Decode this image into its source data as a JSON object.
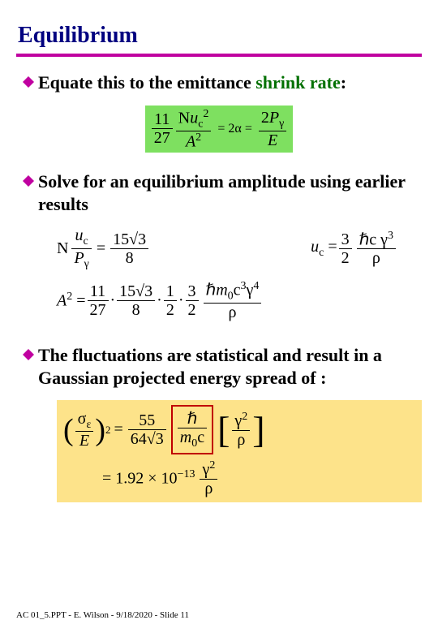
{
  "title": {
    "text": "Equilibrium",
    "color": "#000080",
    "fontsize": 28
  },
  "rule_color": "#c000a0",
  "bullet_color": "#c000a0",
  "highlight_green": "#7ee060",
  "highlight_yellow": "#fde38a",
  "shrink_color": "#007000",
  "bullets": {
    "b1_pre": "Equate this to the emittance ",
    "b1_shrink": "shrink rate",
    "b1_post": ":",
    "b2": "Solve for an equilibrium amplitude using earlier results",
    "b3": "The fluctuations are statistical and result in a Gaussian projected energy spread of :"
  },
  "eq1": {
    "f1_num": "11",
    "f1_den": "27",
    "f2_num_html": "N<i>u</i><sub>c</sub><sup>2</sup>",
    "f2_den_html": "<i>A</i><sup>2</sup>",
    "mid": "= 2α =",
    "f3_num_html": "2<i>P</i><sub>γ</sub>",
    "f3_den_html": "<i>E</i>"
  },
  "eq2a": {
    "left_html": "N ",
    "fL_num_html": "<i>u</i><sub>c</sub>",
    "fL_den_html": "<i>P</i><sub>γ</sub>",
    "eq": " = ",
    "fR_num_html": "15√3",
    "fR_den_html": "8"
  },
  "eq2b": {
    "left_html": "<i>u</i><sub>c</sub> = ",
    "f1_num": "3",
    "f1_den": "2",
    "f2_num_html": "ℏc γ<sup>3</sup>",
    "f2_den_html": "ρ"
  },
  "eq3": {
    "left_html": "<i>A</i><sup>2</sup> = ",
    "t1_num": "11",
    "t1_den": "27",
    "dot": " · ",
    "t2_num_html": "15√3",
    "t2_den": "8",
    "t3_num": "1",
    "t3_den": "2",
    "t4_num": "3",
    "t4_den": "2",
    "t5_num_html": "ℏ<i>m</i><sub>0</sub>c<sup>3</sup>γ<sup>4</sup>",
    "t5_den_html": "ρ"
  },
  "eq4": {
    "paren_num_html": "σ<sub>ε</sub>",
    "paren_den_html": "<i>E</i>",
    "paren_sup": "2",
    "eq": " = ",
    "f1_num": "55",
    "f1_den_html": "64√3",
    "red_num_html": "ℏ",
    "red_den_html": "<i>m</i><sub>0</sub>c",
    "br_num_html": "γ<sup>2</sup>",
    "br_den_html": "ρ",
    "line2_pre": "= 1.92 × 10",
    "line2_exp": "−13",
    "line2_num_html": "γ<sup>2</sup>",
    "line2_den_html": "ρ"
  },
  "footer": "AC 01_5.PPT - E. Wilson - 9/18/2020 - Slide 11"
}
